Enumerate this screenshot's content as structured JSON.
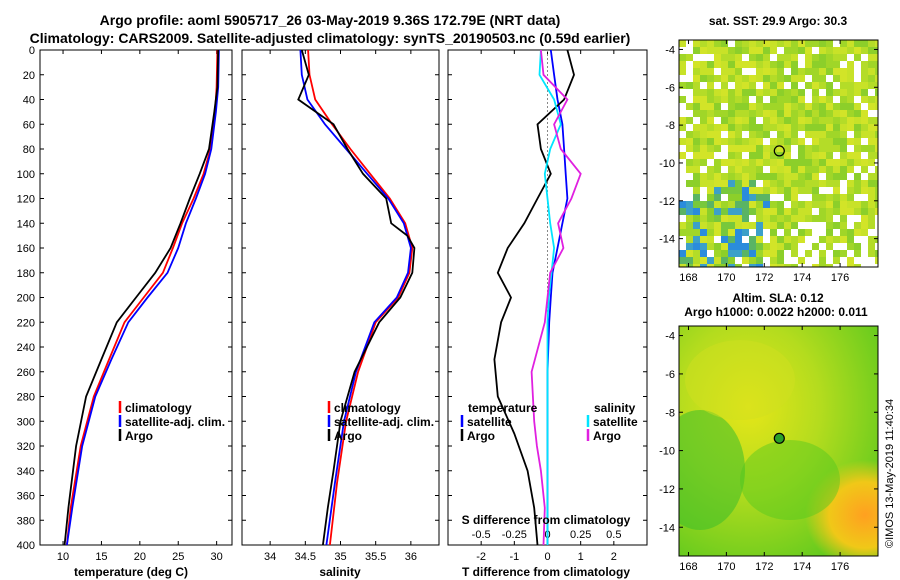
{
  "titles": {
    "line1": "Argo profile: aoml 5905717_26 03-May-2019 9.36S 172.79E (NRT data)",
    "line2": "Climatology: CARS2009. Satellite-adjusted climatology: synTS_20190503.nc (0.59d earlier)"
  },
  "colors": {
    "climatology": "#ff0000",
    "satellite": "#0000ff",
    "argo": "#000000",
    "sat_salinity": "#00e5ff",
    "argo_salinity": "#e020e0"
  },
  "chart_data": [
    {
      "type": "line",
      "name": "temperature-panel",
      "xlabel": "temperature (deg C)",
      "ylabel": "",
      "xlim": [
        7,
        32
      ],
      "ylim": [
        400,
        0
      ],
      "xticks": [
        "10",
        "15",
        "20",
        "25",
        "30"
      ],
      "yticks": [
        "0",
        "20",
        "40",
        "60",
        "80",
        "100",
        "120",
        "140",
        "160",
        "180",
        "200",
        "220",
        "240",
        "260",
        "280",
        "300",
        "320",
        "340",
        "360",
        "380",
        "400"
      ],
      "legend": [
        "climatology",
        "satellite-adj. clim.",
        "Argo"
      ],
      "series": [
        {
          "name": "climatology",
          "x": [
            30.1,
            30.0,
            29.8,
            29.2,
            28.3,
            27.0,
            25.5,
            24.3,
            23.0,
            20.5,
            18.0,
            16.0,
            14.0,
            12.3,
            11.0,
            10.5
          ],
          "y": [
            0,
            30,
            50,
            80,
            100,
            120,
            140,
            160,
            180,
            200,
            220,
            250,
            280,
            320,
            370,
            400
          ]
        },
        {
          "name": "satellite-adj. clim.",
          "x": [
            30.3,
            30.2,
            29.9,
            29.3,
            28.5,
            27.3,
            26.0,
            25.0,
            23.6,
            21.0,
            18.5,
            16.3,
            14.2,
            12.5,
            11.2,
            10.5
          ],
          "y": [
            0,
            30,
            50,
            80,
            100,
            120,
            140,
            160,
            180,
            200,
            220,
            250,
            280,
            320,
            370,
            400
          ]
        },
        {
          "name": "Argo",
          "x": [
            30.2,
            30.1,
            29.7,
            29.0,
            27.8,
            26.5,
            25.3,
            24.0,
            22.0,
            19.5,
            17.0,
            15.0,
            13.0,
            11.7,
            10.7,
            10.2
          ],
          "y": [
            0,
            30,
            50,
            80,
            100,
            120,
            140,
            160,
            180,
            200,
            220,
            250,
            280,
            320,
            370,
            400
          ]
        }
      ]
    },
    {
      "type": "line",
      "name": "salinity-panel",
      "xlabel": "salinity",
      "xlim": [
        33.6,
        36.4
      ],
      "ylim": [
        400,
        0
      ],
      "xticks": [
        "34",
        "34.5",
        "35",
        "35.5",
        "36"
      ],
      "legend": [
        "climatology",
        "satellite-adj. clim.",
        "Argo"
      ],
      "series": [
        {
          "name": "climatology",
          "x": [
            34.54,
            34.56,
            34.64,
            34.88,
            35.14,
            35.42,
            35.7,
            35.92,
            36.02,
            35.98,
            35.82,
            35.5,
            35.25,
            35.08,
            34.95,
            34.85
          ],
          "y": [
            0,
            20,
            40,
            60,
            80,
            100,
            120,
            140,
            160,
            180,
            200,
            220,
            260,
            300,
            350,
            400
          ]
        },
        {
          "name": "satellite-adj. clim.",
          "x": [
            34.43,
            34.45,
            34.53,
            34.78,
            35.08,
            35.38,
            35.68,
            35.9,
            36.0,
            35.96,
            35.8,
            35.48,
            35.22,
            35.05,
            34.92,
            34.8
          ],
          "y": [
            0,
            20,
            40,
            60,
            80,
            100,
            120,
            140,
            160,
            180,
            200,
            220,
            260,
            300,
            350,
            400
          ]
        },
        {
          "name": "Argo",
          "x": [
            34.45,
            34.55,
            34.4,
            34.9,
            35.1,
            35.32,
            35.65,
            35.72,
            35.95,
            36.05,
            36.02,
            35.85,
            35.55,
            35.2,
            35.0,
            34.9,
            34.82,
            34.75
          ],
          "y": [
            0,
            20,
            40,
            60,
            80,
            100,
            120,
            140,
            150,
            160,
            180,
            200,
            220,
            260,
            300,
            340,
            370,
            400
          ]
        }
      ]
    },
    {
      "type": "line",
      "name": "difference-panel",
      "xlabel": "T difference from climatology",
      "xlabel_top": "S difference from climatology",
      "xlim": [
        -3,
        3
      ],
      "ylim": [
        400,
        0
      ],
      "xticks": [
        "-2",
        "-1",
        "0",
        "1",
        "2"
      ],
      "xticks_s": [
        "-0.5",
        "-0.25",
        "0",
        "0.25",
        "0.5"
      ],
      "legend_left_title": "temperature",
      "legend_right_title": "salinity",
      "legend_left": [
        "satellite",
        "Argo"
      ],
      "legend_right": [
        "satellite",
        "Argo"
      ],
      "series": [
        {
          "name": "T satellite",
          "x": [
            0.1,
            0.2,
            0.3,
            0.45,
            0.5,
            0.55,
            0.6,
            0.45,
            0.3,
            0.15,
            0.1,
            0.05,
            0.0,
            0.0,
            0.0,
            0.0
          ],
          "y": [
            0,
            20,
            40,
            60,
            80,
            100,
            120,
            140,
            160,
            180,
            200,
            220,
            260,
            300,
            350,
            400
          ]
        },
        {
          "name": "T Argo",
          "x": [
            0.6,
            0.8,
            0.5,
            -0.3,
            -0.2,
            0.1,
            -0.3,
            -0.7,
            -1.2,
            -1.5,
            -1.1,
            -1.4,
            -1.6,
            -1.5,
            -1.0,
            -0.6,
            -0.4,
            -0.3
          ],
          "y": [
            0,
            20,
            40,
            60,
            80,
            100,
            120,
            140,
            160,
            180,
            200,
            220,
            250,
            280,
            310,
            340,
            370,
            400
          ]
        },
        {
          "name": "S satellite",
          "x": [
            -0.05,
            -0.06,
            0.05,
            0.1,
            0.02,
            -0.02,
            0.0,
            0.02,
            0.05,
            0.03,
            0.01,
            0.0,
            0.0,
            0.0,
            0.0,
            0.0
          ],
          "y": [
            0,
            20,
            40,
            60,
            80,
            100,
            120,
            140,
            160,
            180,
            200,
            220,
            260,
            300,
            350,
            400
          ]
        },
        {
          "name": "S Argo",
          "x": [
            -0.05,
            -0.03,
            0.15,
            0.05,
            0.1,
            0.25,
            0.18,
            0.08,
            0.12,
            0.02,
            0.0,
            -0.02,
            -0.12,
            -0.1,
            -0.08,
            -0.05,
            -0.02,
            -0.03
          ],
          "y": [
            0,
            20,
            40,
            60,
            80,
            100,
            120,
            140,
            160,
            180,
            200,
            220,
            260,
            300,
            320,
            340,
            370,
            400
          ]
        }
      ]
    },
    {
      "type": "heatmap",
      "name": "sst-map",
      "title": "sat. SST: 29.9 Argo: 30.3",
      "xticks": [
        "168",
        "170",
        "172",
        "174",
        "176"
      ],
      "yticks": [
        "-4",
        "-6",
        "-8",
        "-10",
        "-12",
        "-14"
      ],
      "xlim": [
        167.5,
        178
      ],
      "ylim": [
        -15.5,
        -3.5
      ],
      "marker": {
        "lon": 172.79,
        "lat": -9.36
      }
    },
    {
      "type": "heatmap",
      "name": "sla-map",
      "title": "Altim. SLA: 0.12",
      "subtitle": "Argo h1000: 0.0022 h2000: 0.011",
      "xticks": [
        "168",
        "170",
        "172",
        "174",
        "176"
      ],
      "yticks": [
        "-4",
        "-6",
        "-8",
        "-10",
        "-12",
        "-14"
      ],
      "xlim": [
        167.5,
        178
      ],
      "ylim": [
        -15.5,
        -3.5
      ],
      "marker": {
        "lon": 172.79,
        "lat": -9.36
      }
    }
  ],
  "credit": "©IMOS 13-May-2019 11:40:34"
}
